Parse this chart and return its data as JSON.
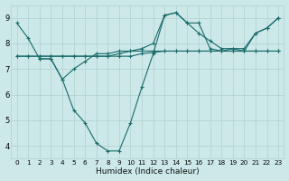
{
  "background_color": "#cce8e8",
  "grid_color": "#b0d0d0",
  "line_color": "#1a6b6b",
  "marker": "+",
  "xlabel": "Humidex (Indice chaleur)",
  "xlim": [
    -0.5,
    23.5
  ],
  "ylim": [
    3.5,
    9.5
  ],
  "yticks": [
    4,
    5,
    6,
    7,
    8,
    9
  ],
  "xticks": [
    0,
    1,
    2,
    3,
    4,
    5,
    6,
    7,
    8,
    9,
    10,
    11,
    12,
    13,
    14,
    15,
    16,
    17,
    18,
    19,
    20,
    21,
    22,
    23
  ],
  "series": [
    {
      "x": [
        0,
        1,
        2,
        3,
        4,
        5,
        6,
        7,
        8,
        9,
        10,
        11,
        12,
        13,
        14,
        15,
        16,
        17,
        18,
        19,
        20,
        21,
        22,
        23
      ],
      "y": [
        8.8,
        8.2,
        7.4,
        7.4,
        6.6,
        5.4,
        4.9,
        4.1,
        3.8,
        3.8,
        4.9,
        6.3,
        7.6,
        9.1,
        9.2,
        8.8,
        8.8,
        7.8,
        7.7,
        7.8,
        7.7,
        8.4,
        8.6,
        9.0
      ]
    },
    {
      "x": [
        0,
        1,
        2,
        3,
        4,
        5,
        6,
        7,
        8,
        9,
        10,
        11,
        12,
        13,
        14,
        15,
        16,
        17,
        18,
        19,
        20,
        21,
        22,
        23
      ],
      "y": [
        7.5,
        7.5,
        7.5,
        7.5,
        7.5,
        7.5,
        7.5,
        7.5,
        7.5,
        7.5,
        7.5,
        7.6,
        7.65,
        7.7,
        7.7,
        7.7,
        7.7,
        7.7,
        7.7,
        7.7,
        7.7,
        7.7,
        7.7,
        7.7
      ]
    },
    {
      "x": [
        2,
        3,
        4,
        5,
        6,
        7,
        8,
        9,
        10,
        11,
        12,
        13,
        14,
        15,
        16,
        17,
        18,
        19,
        20,
        21,
        22,
        23
      ],
      "y": [
        7.4,
        7.4,
        6.6,
        7.0,
        7.3,
        7.6,
        7.6,
        7.7,
        7.7,
        7.7,
        7.7,
        7.7,
        7.7,
        7.7,
        7.7,
        7.7,
        7.7,
        7.7,
        7.7,
        7.7,
        7.7,
        7.7
      ]
    },
    {
      "x": [
        0,
        1,
        2,
        3,
        4,
        5,
        6,
        7,
        8,
        9,
        10,
        11,
        12,
        13,
        14,
        15,
        16,
        17,
        18,
        19,
        20,
        21,
        22,
        23
      ],
      "y": [
        7.5,
        7.5,
        7.5,
        7.5,
        7.5,
        7.5,
        7.5,
        7.5,
        7.5,
        7.6,
        7.7,
        7.8,
        8.0,
        9.1,
        9.2,
        8.8,
        8.4,
        8.1,
        7.8,
        7.8,
        7.8,
        8.4,
        8.6,
        9.0
      ]
    }
  ]
}
